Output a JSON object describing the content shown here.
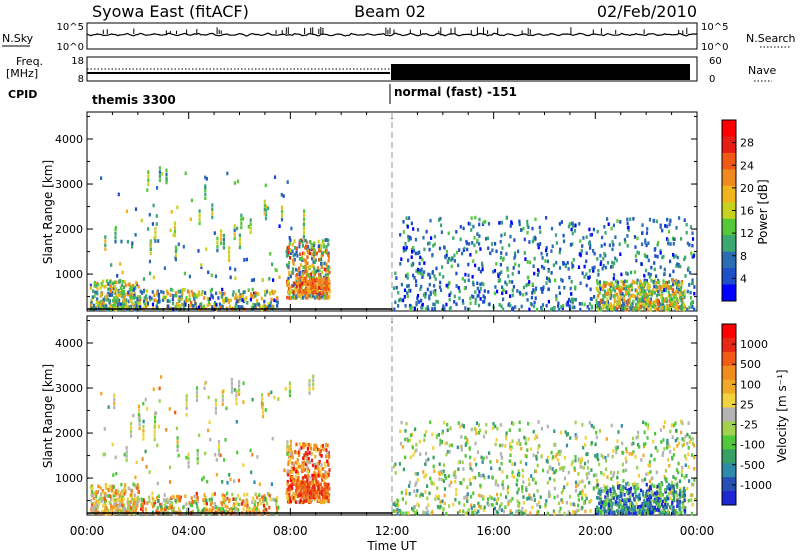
{
  "header": {
    "title": "Syowa East (fitACF)",
    "beam": "Beam 02",
    "date": "02/Feb/2010"
  },
  "top_panels": {
    "nsky_label": "N.Sky",
    "nsky_ticks": [
      "10^5",
      "10^0"
    ],
    "nsearch_label": "N.Search",
    "nsearch_ticks": [
      "10^5",
      "10^0"
    ],
    "freq_label_line1": "Freq.",
    "freq_label_line2": "[MHz]",
    "freq_ticks": [
      "18",
      "8"
    ],
    "nave_label": "Nave",
    "nave_ticks": [
      "60",
      "0"
    ],
    "cpid_label": "CPID",
    "cpid_segments": [
      {
        "start_hour": 0,
        "end_hour": 12,
        "name": "themis 3300"
      },
      {
        "start_hour": 12,
        "end_hour": 24,
        "name": "normal (fast) -151"
      }
    ]
  },
  "chart_data": [
    {
      "type": "heatmap",
      "name": "power-panel",
      "xlabel": "",
      "ylabel": "Slant Range [km]",
      "xlim": [
        0,
        24
      ],
      "ylim": [
        180,
        4600
      ],
      "yticks": [
        "1000",
        "2000",
        "3000",
        "4000"
      ],
      "colorbar_label": "Power [dB]",
      "colorbar_ticks": [
        "4",
        "8",
        "12",
        "16",
        "20",
        "24",
        "28"
      ],
      "colorbar_colors": [
        "#0000ff",
        "#1f4fc8",
        "#2a6db3",
        "#3aa870",
        "#55c83a",
        "#c8d21e",
        "#f0b41e",
        "#f08a1e",
        "#f05a14",
        "#e61e14",
        "#ff0000"
      ]
    },
    {
      "type": "heatmap",
      "name": "velocity-panel",
      "xlabel": "Time UT",
      "ylabel": "Slant Range [km]",
      "xlim": [
        0,
        24
      ],
      "ylim": [
        180,
        4600
      ],
      "yticks": [
        "1000",
        "2000",
        "3000",
        "4000"
      ],
      "xticks": [
        "00:00",
        "04:00",
        "08:00",
        "12:00",
        "16:00",
        "20:00",
        "00:00"
      ],
      "colorbar_label": "Velocity  [m s⁻¹]",
      "colorbar_ticks": [
        "1000",
        "500",
        "100",
        "25",
        "-25",
        "-100",
        "-500",
        "-1000"
      ],
      "colorbar_colors": [
        "#1e28d2",
        "#2850b4",
        "#2d8caa",
        "#37a064",
        "#50c83c",
        "#a0d250",
        "#b4b4b4",
        "#f0d23c",
        "#f0aa28",
        "#f08c1e",
        "#f05a14",
        "#e62814",
        "#ff0000"
      ]
    }
  ]
}
